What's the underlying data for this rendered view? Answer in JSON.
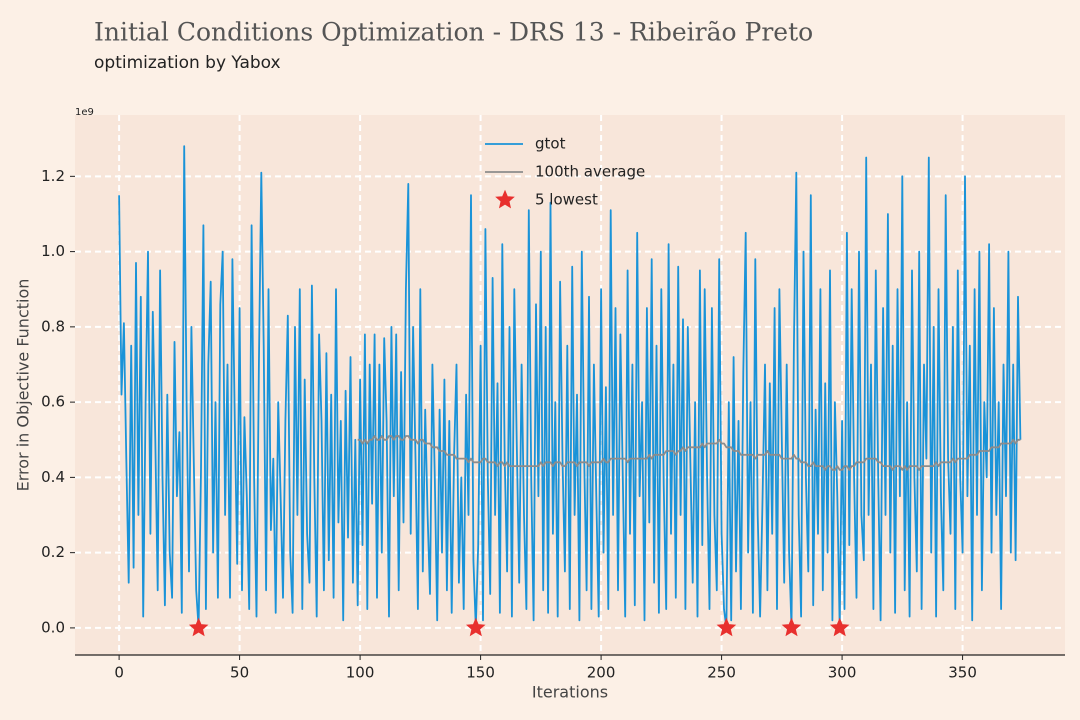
{
  "chart_data": {
    "type": "line",
    "title": "Initial Conditions Optimization - DRS 13 - Ribeirão Preto",
    "subtitle": "optimization by Yabox",
    "x_label": "Iterations",
    "y_label": "Error in Objective Function",
    "y_offset_label": "1e9",
    "xlim": [
      -18.3,
      392.5
    ],
    "ylim": [
      -0.072,
      1.363
    ],
    "xticks": [
      0,
      50,
      100,
      150,
      200,
      250,
      300,
      350
    ],
    "yticks": [
      {
        "value": 0,
        "label": "0.0"
      },
      0.2,
      0.4,
      0.6,
      0.8,
      {
        "value": 1,
        "label": "1.0"
      },
      1.2
    ],
    "grid": true,
    "legend": "upper center",
    "x": [
      0,
      1,
      2,
      3,
      4,
      5,
      6,
      7,
      8,
      9,
      10,
      11,
      12,
      13,
      14,
      15,
      16,
      17,
      18,
      19,
      20,
      21,
      22,
      23,
      24,
      25,
      26,
      27,
      28,
      29,
      30,
      31,
      32,
      33,
      34,
      35,
      36,
      37,
      38,
      39,
      40,
      41,
      42,
      43,
      44,
      45,
      46,
      47,
      48,
      49,
      50,
      51,
      52,
      53,
      54,
      55,
      56,
      57,
      58,
      59,
      60,
      61,
      62,
      63,
      64,
      65,
      66,
      67,
      68,
      69,
      70,
      71,
      72,
      73,
      74,
      75,
      76,
      77,
      78,
      79,
      80,
      81,
      82,
      83,
      84,
      85,
      86,
      87,
      88,
      89,
      90,
      91,
      92,
      93,
      94,
      95,
      96,
      97,
      98,
      99,
      100,
      101,
      102,
      103,
      104,
      105,
      106,
      107,
      108,
      109,
      110,
      111,
      112,
      113,
      114,
      115,
      116,
      117,
      118,
      119,
      120,
      121,
      122,
      123,
      124,
      125,
      126,
      127,
      128,
      129,
      130,
      131,
      132,
      133,
      134,
      135,
      136,
      137,
      138,
      139,
      140,
      141,
      142,
      143,
      144,
      145,
      146,
      147,
      148,
      149,
      150,
      151,
      152,
      153,
      154,
      155,
      156,
      157,
      158,
      159,
      160,
      161,
      162,
      163,
      164,
      165,
      166,
      167,
      168,
      169,
      170,
      171,
      172,
      173,
      174,
      175,
      176,
      177,
      178,
      179,
      180,
      181,
      182,
      183,
      184,
      185,
      186,
      187,
      188,
      189,
      190,
      191,
      192,
      193,
      194,
      195,
      196,
      197,
      198,
      199,
      200,
      201,
      202,
      203,
      204,
      205,
      206,
      207,
      208,
      209,
      210,
      211,
      212,
      213,
      214,
      215,
      216,
      217,
      218,
      219,
      220,
      221,
      222,
      223,
      224,
      225,
      226,
      227,
      228,
      229,
      230,
      231,
      232,
      233,
      234,
      235,
      236,
      237,
      238,
      239,
      240,
      241,
      242,
      243,
      244,
      245,
      246,
      247,
      248,
      249,
      250,
      251,
      252,
      253,
      254,
      255,
      256,
      257,
      258,
      259,
      260,
      261,
      262,
      263,
      264,
      265,
      266,
      267,
      268,
      269,
      270,
      271,
      272,
      273,
      274,
      275,
      276,
      277,
      278,
      279,
      280,
      281,
      282,
      283,
      284,
      285,
      286,
      287,
      288,
      289,
      290,
      291,
      292,
      293,
      294,
      295,
      296,
      297,
      298,
      299,
      300,
      301,
      302,
      303,
      304,
      305,
      306,
      307,
      308,
      309,
      310,
      311,
      312,
      313,
      314,
      315,
      316,
      317,
      318,
      319,
      320,
      321,
      322,
      323,
      324,
      325,
      326,
      327,
      328,
      329,
      330,
      331,
      332,
      333,
      334,
      335,
      336,
      337,
      338,
      339,
      340,
      341,
      342,
      343,
      344,
      345,
      346,
      347,
      348,
      349,
      350,
      351,
      352,
      353,
      354,
      355,
      356,
      357,
      358,
      359,
      360,
      361,
      362,
      363,
      364,
      365,
      366,
      367,
      368,
      369,
      370,
      371,
      372,
      373,
      374
    ],
    "series": [
      {
        "name": "gtot",
        "color": "#1a93d8",
        "values": [
          1.15,
          0.62,
          0.81,
          0.45,
          0.12,
          0.75,
          0.16,
          0.97,
          0.3,
          0.88,
          0.03,
          0.6,
          1.0,
          0.25,
          0.84,
          0.5,
          0.1,
          0.95,
          0.4,
          0.06,
          0.62,
          0.2,
          0.08,
          0.76,
          0.35,
          0.52,
          0.04,
          1.28,
          0.6,
          0.15,
          0.8,
          0.44,
          0.1,
          0.0,
          0.42,
          1.07,
          0.05,
          0.7,
          0.92,
          0.2,
          0.6,
          0.08,
          0.86,
          1.0,
          0.3,
          0.7,
          0.08,
          0.98,
          0.55,
          0.17,
          0.85,
          0.1,
          0.56,
          0.35,
          0.05,
          1.07,
          0.4,
          0.03,
          0.7,
          1.21,
          0.75,
          0.1,
          0.9,
          0.26,
          0.45,
          0.04,
          0.6,
          0.35,
          0.08,
          0.55,
          0.83,
          0.2,
          0.04,
          0.8,
          0.3,
          0.9,
          0.05,
          0.66,
          0.25,
          0.12,
          0.91,
          0.4,
          0.03,
          0.78,
          0.55,
          0.1,
          0.73,
          0.18,
          0.62,
          0.08,
          0.9,
          0.28,
          0.55,
          0.02,
          0.63,
          0.24,
          0.72,
          0.12,
          0.5,
          0.06,
          0.66,
          0.22,
          0.78,
          0.05,
          0.7,
          0.33,
          0.78,
          0.08,
          0.7,
          0.2,
          0.77,
          0.55,
          0.03,
          0.8,
          0.35,
          0.78,
          0.1,
          0.68,
          0.28,
          0.9,
          1.18,
          0.25,
          0.8,
          0.45,
          0.05,
          0.9,
          0.15,
          0.58,
          0.3,
          0.09,
          0.7,
          0.4,
          0.02,
          0.58,
          0.2,
          0.66,
          0.1,
          0.55,
          0.04,
          0.46,
          0.7,
          0.12,
          0.4,
          0.05,
          0.62,
          0.3,
          1.15,
          0.18,
          0.0,
          0.22,
          0.75,
          0.02,
          1.06,
          0.4,
          0.09,
          0.93,
          0.3,
          0.65,
          0.04,
          1.02,
          0.45,
          0.15,
          0.8,
          0.03,
          0.9,
          0.5,
          0.12,
          0.7,
          0.3,
          0.05,
          1.11,
          0.4,
          0.02,
          0.86,
          0.35,
          1.0,
          0.1,
          0.8,
          0.04,
          1.13,
          0.25,
          0.6,
          0.03,
          0.92,
          0.45,
          0.15,
          0.75,
          0.05,
          0.96,
          0.3,
          0.62,
          0.02,
          1.0,
          0.45,
          0.1,
          0.88,
          0.05,
          0.7,
          0.35,
          0.03,
          0.9,
          0.2,
          0.64,
          0.05,
          1.11,
          0.3,
          0.85,
          0.1,
          0.78,
          0.4,
          0.03,
          0.95,
          0.25,
          0.7,
          0.06,
          1.05,
          0.35,
          0.6,
          0.02,
          0.85,
          0.28,
          0.98,
          0.12,
          0.75,
          0.04,
          0.9,
          0.38,
          0.05,
          1.02,
          0.25,
          0.7,
          0.08,
          0.96,
          0.3,
          0.82,
          0.05,
          0.8,
          0.45,
          0.12,
          0.6,
          0.03,
          0.95,
          0.22,
          0.9,
          0.4,
          0.05,
          0.85,
          0.3,
          0.1,
          0.98,
          0.25,
          0.05,
          0.0,
          0.6,
          0.02,
          0.72,
          0.15,
          0.55,
          0.05,
          0.68,
          1.05,
          0.2,
          0.6,
          0.04,
          0.98,
          0.3,
          0.03,
          0.35,
          0.7,
          0.1,
          0.65,
          0.25,
          0.85,
          0.05,
          0.9,
          0.5,
          0.12,
          0.7,
          0.2,
          0.0,
          0.75,
          1.21,
          0.3,
          0.03,
          1.0,
          0.4,
          0.15,
          1.15,
          0.06,
          0.58,
          0.25,
          0.9,
          0.1,
          0.65,
          0.2,
          0.95,
          0.02,
          0.6,
          0.35,
          0.0,
          0.55,
          0.05,
          1.05,
          0.22,
          0.9,
          0.4,
          0.08,
          1.0,
          0.3,
          0.18,
          1.25,
          0.3,
          0.7,
          0.05,
          0.95,
          0.4,
          0.02,
          0.85,
          0.3,
          1.1,
          0.2,
          0.75,
          0.04,
          0.9,
          0.35,
          1.2,
          0.1,
          0.6,
          0.03,
          0.95,
          0.4,
          0.15,
          1.0,
          0.05,
          0.7,
          0.45,
          1.25,
          0.2,
          0.8,
          0.03,
          0.9,
          0.35,
          0.1,
          1.15,
          0.45,
          0.25,
          0.8,
          0.05,
          0.95,
          0.4,
          0.2,
          1.2,
          0.35,
          0.75,
          0.02,
          0.9,
          0.3,
          1.0,
          0.1,
          0.6,
          0.4,
          1.02,
          0.2,
          0.85,
          0.3,
          0.6,
          0.05,
          0.7,
          0.35,
          1.0,
          0.2,
          0.7,
          0.18,
          0.88,
          0.5
        ]
      },
      {
        "name": "100th average",
        "color": "#8c8c8c",
        "values": [
          null,
          null,
          null,
          null,
          null,
          null,
          null,
          null,
          null,
          null,
          null,
          null,
          null,
          null,
          null,
          null,
          null,
          null,
          null,
          null,
          null,
          null,
          null,
          null,
          null,
          null,
          null,
          null,
          null,
          null,
          null,
          null,
          null,
          null,
          null,
          null,
          null,
          null,
          null,
          null,
          null,
          null,
          null,
          null,
          null,
          null,
          null,
          null,
          null,
          null,
          null,
          null,
          null,
          null,
          null,
          null,
          null,
          null,
          null,
          null,
          null,
          null,
          null,
          null,
          null,
          null,
          null,
          null,
          null,
          null,
          null,
          null,
          null,
          null,
          null,
          null,
          null,
          null,
          null,
          null,
          null,
          null,
          null,
          null,
          null,
          null,
          null,
          null,
          null,
          null,
          null,
          null,
          null,
          null,
          null,
          null,
          null,
          null,
          null,
          0.5,
          0.5,
          0.49,
          0.5,
          0.49,
          0.5,
          0.5,
          0.51,
          0.5,
          0.5,
          0.51,
          0.5,
          0.5,
          0.51,
          0.51,
          0.5,
          0.51,
          0.51,
          0.5,
          0.5,
          0.51,
          0.51,
          0.5,
          0.5,
          0.5,
          0.49,
          0.5,
          0.5,
          0.49,
          0.49,
          0.49,
          0.48,
          0.48,
          0.48,
          0.47,
          0.47,
          0.47,
          0.46,
          0.46,
          0.46,
          0.46,
          0.45,
          0.45,
          0.45,
          0.45,
          0.45,
          0.44,
          0.45,
          0.44,
          0.44,
          0.44,
          0.44,
          0.45,
          0.45,
          0.44,
          0.44,
          0.44,
          0.44,
          0.43,
          0.44,
          0.44,
          0.43,
          0.44,
          0.43,
          0.43,
          0.43,
          0.43,
          0.43,
          0.43,
          0.43,
          0.43,
          0.43,
          0.43,
          0.43,
          0.43,
          0.43,
          0.44,
          0.43,
          0.44,
          0.44,
          0.44,
          0.43,
          0.44,
          0.44,
          0.44,
          0.43,
          0.43,
          0.44,
          0.44,
          0.44,
          0.44,
          0.43,
          0.44,
          0.44,
          0.44,
          0.44,
          0.43,
          0.44,
          0.44,
          0.44,
          0.44,
          0.44,
          0.45,
          0.44,
          0.44,
          0.45,
          0.45,
          0.45,
          0.45,
          0.45,
          0.45,
          0.45,
          0.44,
          0.45,
          0.45,
          0.45,
          0.45,
          0.45,
          0.45,
          0.45,
          0.45,
          0.46,
          0.45,
          0.46,
          0.46,
          0.46,
          0.46,
          0.46,
          0.47,
          0.47,
          0.47,
          0.47,
          0.46,
          0.47,
          0.47,
          0.48,
          0.47,
          0.48,
          0.48,
          0.48,
          0.48,
          0.48,
          0.48,
          0.49,
          0.48,
          0.49,
          0.49,
          0.49,
          0.49,
          0.49,
          0.5,
          0.49,
          0.49,
          0.48,
          0.48,
          0.48,
          0.47,
          0.47,
          0.47,
          0.46,
          0.46,
          0.46,
          0.46,
          0.46,
          0.46,
          0.45,
          0.46,
          0.46,
          0.46,
          0.46,
          0.47,
          0.46,
          0.46,
          0.46,
          0.46,
          0.46,
          0.45,
          0.45,
          0.45,
          0.45,
          0.45,
          0.46,
          0.45,
          0.45,
          0.44,
          0.44,
          0.44,
          0.43,
          0.43,
          0.44,
          0.43,
          0.43,
          0.43,
          0.43,
          0.42,
          0.43,
          0.43,
          0.42,
          0.42,
          0.43,
          0.42,
          0.42,
          0.43,
          0.43,
          0.42,
          0.43,
          0.43,
          0.44,
          0.44,
          0.44,
          0.44,
          0.45,
          0.45,
          0.45,
          0.45,
          0.45,
          0.44,
          0.44,
          0.43,
          0.43,
          0.43,
          0.43,
          0.42,
          0.43,
          0.43,
          0.43,
          0.42,
          0.43,
          0.42,
          0.43,
          0.43,
          0.43,
          0.43,
          0.42,
          0.43,
          0.43,
          0.43,
          0.43,
          0.43,
          0.43,
          0.44,
          0.43,
          0.44,
          0.44,
          0.44,
          0.44,
          0.44,
          0.45,
          0.44,
          0.45,
          0.45,
          0.45,
          0.45,
          0.45,
          0.46,
          0.46,
          0.46,
          0.46,
          0.47,
          0.47,
          0.47,
          0.47,
          0.47,
          0.48,
          0.48,
          0.48,
          0.48,
          0.49,
          0.49,
          0.49,
          0.49,
          0.49,
          0.5,
          0.49,
          0.5,
          0.5
        ]
      },
      {
        "name": "5 lowest",
        "color": "#e8302e",
        "marker": "star",
        "x": [
          33,
          148,
          252,
          279,
          299
        ],
        "values": [
          0,
          0,
          0,
          0,
          0
        ]
      }
    ]
  }
}
